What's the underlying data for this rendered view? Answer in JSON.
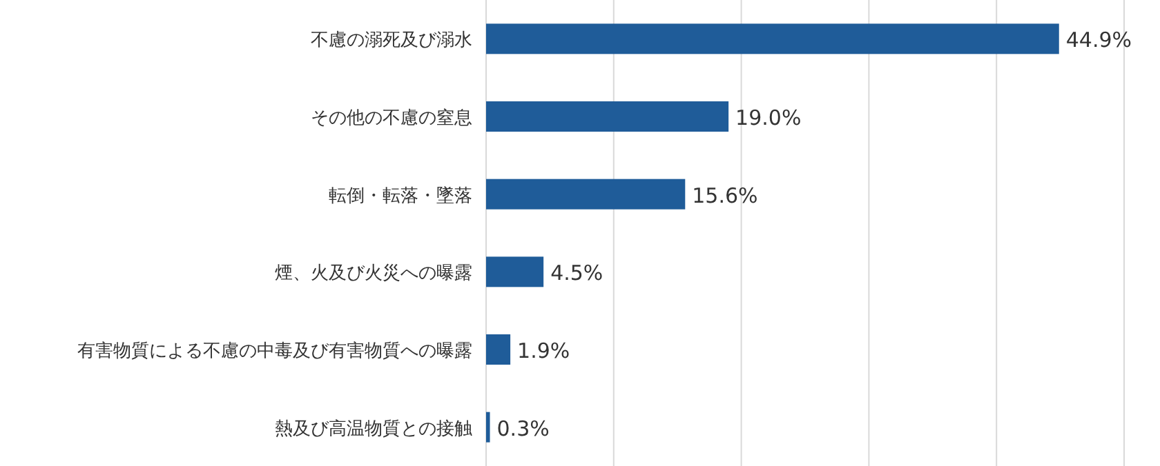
{
  "chart_data": {
    "type": "bar",
    "orientation": "horizontal",
    "categories": [
      "不慮の溺死及び溺水",
      "その他の不慮の窒息",
      "転倒・転落・墜落",
      "煙、火及び火災への曝露",
      "有害物質による不慮の中毒及び有害物質への曝露",
      "熱及び高温物質との接触"
    ],
    "values": [
      44.9,
      19.0,
      15.6,
      4.5,
      1.9,
      0.3
    ],
    "value_labels": [
      "44.9%",
      "19.0%",
      "15.6%",
      "4.5%",
      "1.9%",
      "0.3%"
    ],
    "color": "#1f5c99",
    "xlim": [
      0,
      50
    ],
    "xticks": [
      {
        "value": 0,
        "label": null
      },
      {
        "value": 10,
        "label": null
      },
      {
        "value": 20,
        "label": null
      },
      {
        "value": 30,
        "label": null
      },
      {
        "value": 40,
        "label": null
      },
      {
        "value": 50,
        "label": null
      }
    ],
    "grid": "x",
    "tick_labels": "y"
  }
}
